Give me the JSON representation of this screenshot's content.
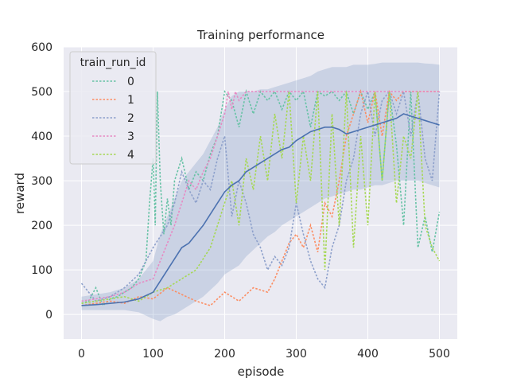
{
  "colors": {
    "background": "#eaeaf2",
    "grid": "#ffffff",
    "mean_line": "#4c72b0",
    "band": "#4c72b0"
  },
  "chart_data": {
    "type": "line",
    "title": "Training performance",
    "xlabel": "episode",
    "ylabel": "reward",
    "xlim": [
      -25,
      525
    ],
    "ylim": [
      -55,
      600
    ],
    "xticks": [
      0,
      100,
      200,
      300,
      400,
      500
    ],
    "yticks": [
      0,
      100,
      200,
      300,
      400,
      500,
      600
    ],
    "grid": true,
    "legend": {
      "title": "train_run_id",
      "placement": "top-left"
    },
    "mean": {
      "x": [
        0,
        20,
        40,
        60,
        80,
        100,
        110,
        120,
        130,
        140,
        150,
        160,
        170,
        180,
        190,
        200,
        210,
        220,
        230,
        240,
        250,
        260,
        270,
        280,
        290,
        300,
        310,
        320,
        330,
        340,
        350,
        360,
        370,
        380,
        390,
        400,
        410,
        420,
        430,
        440,
        450,
        460,
        470,
        480,
        490,
        500
      ],
      "y": [
        20,
        22,
        25,
        28,
        35,
        50,
        75,
        100,
        125,
        150,
        160,
        180,
        200,
        225,
        250,
        275,
        290,
        300,
        320,
        330,
        340,
        350,
        360,
        370,
        375,
        390,
        400,
        410,
        415,
        420,
        420,
        415,
        405,
        410,
        415,
        420,
        425,
        430,
        435,
        440,
        450,
        445,
        440,
        435,
        430,
        425
      ],
      "upper": [
        40,
        45,
        50,
        60,
        80,
        120,
        180,
        220,
        260,
        300,
        320,
        340,
        360,
        390,
        420,
        460,
        490,
        500,
        500,
        500,
        505,
        505,
        510,
        515,
        520,
        525,
        530,
        535,
        545,
        550,
        555,
        555,
        555,
        560,
        560,
        560,
        562,
        565,
        565,
        565,
        565,
        565,
        565,
        563,
        562,
        560
      ],
      "lower": [
        10,
        10,
        10,
        10,
        5,
        -10,
        -15,
        -5,
        0,
        10,
        20,
        30,
        40,
        55,
        70,
        90,
        100,
        110,
        130,
        145,
        160,
        175,
        185,
        200,
        210,
        220,
        230,
        240,
        250,
        260,
        265,
        270,
        275,
        280,
        280,
        285,
        290,
        290,
        295,
        300,
        300,
        300,
        300,
        295,
        290,
        285
      ]
    },
    "series": [
      {
        "name": "0",
        "color": "#66c2a5",
        "x": [
          0,
          10,
          20,
          30,
          40,
          50,
          60,
          70,
          80,
          90,
          95,
          100,
          103,
          106,
          110,
          115,
          120,
          125,
          130,
          140,
          150,
          160,
          170,
          180,
          190,
          200,
          210,
          220,
          230,
          240,
          250,
          260,
          270,
          280,
          290,
          300,
          310,
          320,
          330,
          340,
          350,
          360,
          370,
          380,
          390,
          400,
          410,
          420,
          430,
          440,
          450,
          460,
          470,
          480,
          490,
          500
        ],
        "y": [
          25,
          30,
          60,
          20,
          35,
          40,
          50,
          60,
          80,
          120,
          250,
          350,
          200,
          500,
          300,
          180,
          260,
          200,
          300,
          350,
          280,
          320,
          300,
          360,
          400,
          500,
          480,
          420,
          500,
          450,
          500,
          480,
          500,
          460,
          500,
          480,
          500,
          420,
          500,
          490,
          500,
          480,
          500,
          450,
          500,
          460,
          500,
          300,
          500,
          380,
          200,
          500,
          150,
          220,
          140,
          230
        ]
      },
      {
        "name": "1",
        "color": "#fc8d62",
        "x": [
          0,
          20,
          40,
          60,
          80,
          100,
          120,
          140,
          160,
          180,
          200,
          220,
          240,
          260,
          270,
          280,
          290,
          300,
          310,
          320,
          330,
          340,
          350,
          360,
          370,
          380,
          390,
          400,
          410,
          420,
          430,
          440,
          450,
          460,
          470,
          480,
          490,
          500
        ],
        "y": [
          20,
          25,
          30,
          25,
          40,
          35,
          60,
          45,
          30,
          20,
          50,
          30,
          60,
          50,
          80,
          120,
          160,
          180,
          150,
          200,
          140,
          250,
          220,
          300,
          400,
          450,
          500,
          430,
          500,
          400,
          500,
          480,
          500,
          500,
          500,
          500,
          500,
          500
        ]
      },
      {
        "name": "2",
        "color": "#8da0cb",
        "x": [
          0,
          20,
          40,
          60,
          80,
          100,
          120,
          130,
          140,
          150,
          160,
          170,
          180,
          190,
          200,
          210,
          220,
          230,
          240,
          250,
          260,
          270,
          280,
          290,
          300,
          310,
          320,
          330,
          340,
          350,
          360,
          370,
          380,
          390,
          400,
          410,
          420,
          430,
          440,
          450,
          460,
          470,
          480,
          490,
          500
        ],
        "y": [
          70,
          30,
          40,
          60,
          90,
          150,
          200,
          250,
          320,
          280,
          250,
          300,
          280,
          350,
          400,
          220,
          300,
          250,
          180,
          150,
          100,
          130,
          110,
          150,
          250,
          180,
          120,
          80,
          60,
          150,
          200,
          300,
          350,
          450,
          500,
          400,
          480,
          500,
          450,
          500,
          400,
          500,
          350,
          300,
          500
        ]
      },
      {
        "name": "3",
        "color": "#e78ac3",
        "x": [
          0,
          20,
          40,
          60,
          80,
          100,
          110,
          120,
          130,
          140,
          150,
          160,
          170,
          180,
          190,
          200,
          205,
          210,
          215,
          220,
          230,
          240,
          250,
          260,
          270,
          280,
          290,
          300,
          310,
          320,
          330,
          340,
          350,
          360,
          370,
          380,
          390,
          400,
          410,
          420,
          430,
          440,
          450,
          460,
          470,
          480,
          490,
          500
        ],
        "y": [
          30,
          35,
          40,
          50,
          70,
          80,
          120,
          160,
          200,
          250,
          300,
          280,
          320,
          350,
          400,
          450,
          500,
          460,
          500,
          480,
          500,
          500,
          500,
          500,
          500,
          500,
          500,
          500,
          500,
          500,
          500,
          500,
          500,
          500,
          500,
          500,
          500,
          500,
          500,
          500,
          500,
          500,
          500,
          500,
          500,
          500,
          500,
          500
        ]
      },
      {
        "name": "4",
        "color": "#a6d854",
        "x": [
          0,
          20,
          40,
          60,
          80,
          100,
          120,
          140,
          160,
          180,
          190,
          200,
          210,
          220,
          230,
          240,
          250,
          260,
          270,
          280,
          290,
          300,
          310,
          320,
          330,
          340,
          350,
          360,
          370,
          380,
          390,
          400,
          410,
          420,
          430,
          440,
          450,
          460,
          470,
          480,
          490,
          500
        ],
        "y": [
          25,
          30,
          35,
          40,
          30,
          50,
          60,
          80,
          100,
          150,
          200,
          250,
          300,
          200,
          350,
          280,
          400,
          300,
          450,
          350,
          500,
          250,
          400,
          300,
          500,
          100,
          450,
          200,
          500,
          150,
          400,
          200,
          500,
          300,
          500,
          250,
          400,
          350,
          500,
          200,
          150,
          120
        ]
      }
    ]
  }
}
